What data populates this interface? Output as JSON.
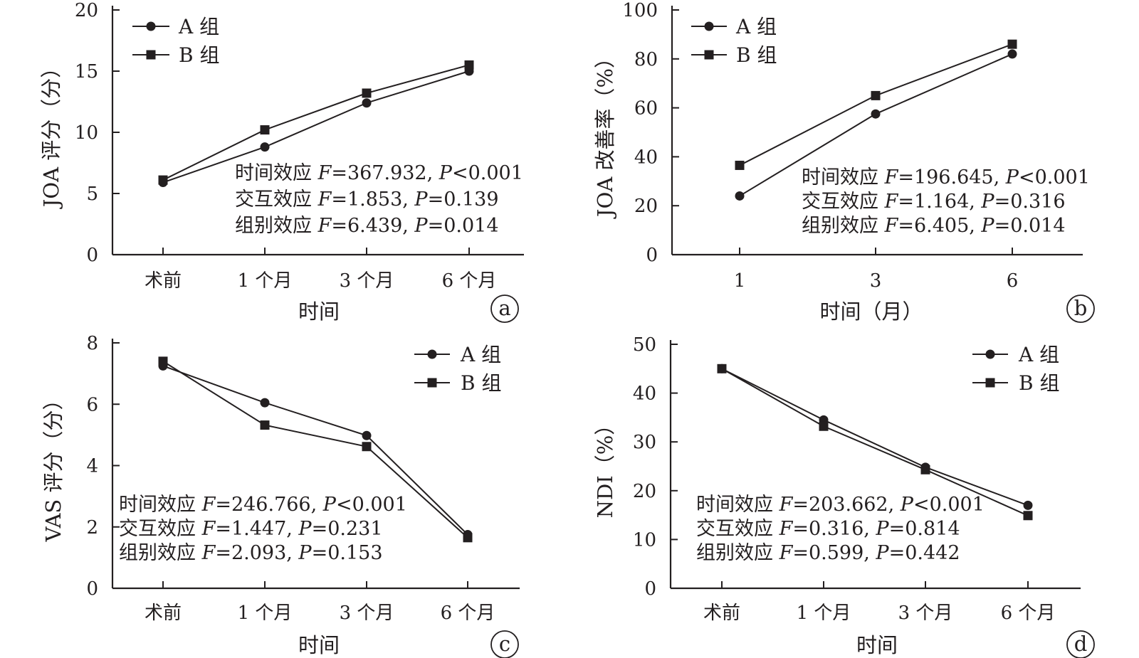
{
  "chart_data": [
    {
      "type": "line",
      "categories": [
        "术前",
        "1 个月",
        "3 个月",
        "6 个月"
      ],
      "series": [
        {
          "name": "A 组",
          "marker": "circle",
          "values": [
            5.9,
            8.8,
            12.4,
            15.0
          ]
        },
        {
          "name": "B 组",
          "marker": "square",
          "values": [
            6.1,
            10.2,
            13.2,
            15.5
          ]
        }
      ],
      "xlabel": "时间",
      "ylabel": "JOA 评分（分）",
      "ylim": [
        0,
        20
      ],
      "yticks": [
        "0",
        "5",
        "10",
        "15",
        "20"
      ],
      "panel_label": "a",
      "legend_position": "top-left",
      "grid": false,
      "stats": [
        {
          "label": "时间效应",
          "f": "=367.932",
          "p": "<0.001"
        },
        {
          "label": "交互效应",
          "f": "=1.853",
          "p": "=0.139"
        },
        {
          "label": "组别效应",
          "f": "=6.439",
          "p": "=0.014"
        }
      ]
    },
    {
      "type": "line",
      "categories": [
        "1",
        "3",
        "6"
      ],
      "series": [
        {
          "name": "A 组",
          "marker": "circle",
          "values": [
            24,
            57.5,
            82
          ]
        },
        {
          "name": "B 组",
          "marker": "square",
          "values": [
            36.5,
            65,
            86
          ]
        }
      ],
      "xlabel": "时间（月）",
      "ylabel": "JOA 改善率（%）",
      "ylim": [
        0,
        100
      ],
      "yticks": [
        "0",
        "20",
        "40",
        "60",
        "80",
        "100"
      ],
      "panel_label": "b",
      "legend_position": "top-left",
      "grid": false,
      "stats": [
        {
          "label": "时间效应",
          "f": "=196.645",
          "p": "<0.001"
        },
        {
          "label": "交互效应",
          "f": "=1.164",
          "p": "=0.316"
        },
        {
          "label": "组别效应",
          "f": "=6.405",
          "p": "=0.014"
        }
      ]
    },
    {
      "type": "line",
      "categories": [
        "术前",
        "1 个月",
        "3 个月",
        "6 个月"
      ],
      "series": [
        {
          "name": "A 组",
          "marker": "circle",
          "values": [
            7.25,
            6.05,
            4.98,
            1.75
          ]
        },
        {
          "name": "B 组",
          "marker": "square",
          "values": [
            7.4,
            5.32,
            4.62,
            1.65
          ]
        }
      ],
      "xlabel": "时间",
      "ylabel": "VAS 评分（分）",
      "ylim": [
        0,
        8
      ],
      "yticks": [
        "0",
        "2",
        "4",
        "6",
        "8"
      ],
      "panel_label": "c",
      "legend_position": "top-right",
      "grid": false,
      "stats": [
        {
          "label": "时间效应",
          "f": "=246.766",
          "p": "<0.001"
        },
        {
          "label": "交互效应",
          "f": "=1.447",
          "p": "=0.231"
        },
        {
          "label": "组别效应",
          "f": "=2.093",
          "p": "=0.153"
        }
      ]
    },
    {
      "type": "line",
      "categories": [
        "术前",
        "1 个月",
        "3 个月",
        "6 个月"
      ],
      "series": [
        {
          "name": "A 组",
          "marker": "circle",
          "values": [
            45,
            34.5,
            24.8,
            17
          ]
        },
        {
          "name": "B 组",
          "marker": "square",
          "values": [
            45,
            33.2,
            24.3,
            14.9
          ]
        }
      ],
      "xlabel": "时间",
      "ylabel": "NDI（%）",
      "ylim": [
        0,
        50
      ],
      "yticks": [
        "0",
        "10",
        "20",
        "30",
        "40",
        "50"
      ],
      "panel_label": "d",
      "legend_position": "top-right",
      "grid": false,
      "stats": [
        {
          "label": "时间效应",
          "f": "=203.662",
          "p": "<0.001"
        },
        {
          "label": "交互效应",
          "f": "=0.316",
          "p": "=0.814"
        },
        {
          "label": "组别效应",
          "f": "=0.599",
          "p": "=0.442"
        }
      ]
    }
  ]
}
